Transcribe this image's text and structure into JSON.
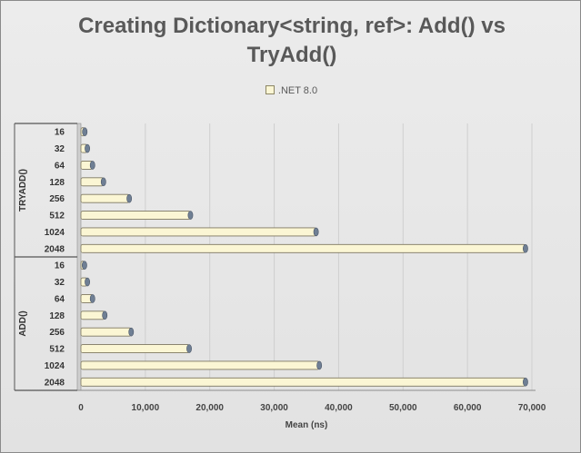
{
  "chart_data": {
    "type": "bar",
    "orientation": "horizontal",
    "title": "Creating Dictionary<string, ref>: Add() vs TryAdd()",
    "xlabel": "Mean (ns)",
    "ylabel": "",
    "xlim": [
      0,
      70000
    ],
    "xticks": [
      "0",
      "10,000",
      "20,000",
      "30,000",
      "40,000",
      "50,000",
      "60,000",
      "70,000"
    ],
    "grid": true,
    "legend_position": "top",
    "bar_color": "#fbf6d4",
    "groups": [
      {
        "name": "TRYADD()",
        "categories": [
          "16",
          "32",
          "64",
          "128",
          "256",
          "512",
          "1024",
          "2048"
        ],
        "values": [
          600,
          1000,
          1800,
          3500,
          7500,
          17000,
          36500,
          69000
        ]
      },
      {
        "name": "ADD()",
        "categories": [
          "16",
          "32",
          "64",
          "128",
          "256",
          "512",
          "1024",
          "2048"
        ],
        "values": [
          550,
          1000,
          1800,
          3700,
          7800,
          16800,
          37000,
          69000
        ]
      }
    ],
    "series": [
      {
        "name": ".NET 8.0"
      }
    ]
  }
}
